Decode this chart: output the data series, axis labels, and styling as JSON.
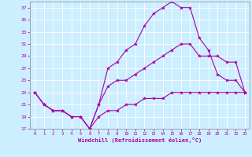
{
  "xlabel": "Windchill (Refroidissement éolien,°C)",
  "bg_color": "#cceeff",
  "line_color": "#aa00aa",
  "xlim": [
    -0.5,
    23.5
  ],
  "ylim": [
    17,
    38
  ],
  "xticks": [
    0,
    1,
    2,
    3,
    4,
    5,
    6,
    7,
    8,
    9,
    10,
    11,
    12,
    13,
    14,
    15,
    16,
    17,
    18,
    19,
    20,
    21,
    22,
    23
  ],
  "yticks": [
    17,
    19,
    21,
    23,
    25,
    27,
    29,
    31,
    33,
    35,
    37
  ],
  "line1_x": [
    0,
    1,
    2,
    3,
    4,
    5,
    6,
    7,
    8,
    9,
    10,
    11,
    12,
    13,
    14,
    15,
    16,
    17,
    18,
    19,
    20,
    21,
    22,
    23
  ],
  "line1_y": [
    23,
    21,
    20,
    20,
    19,
    19,
    17,
    21,
    27,
    28,
    30,
    31,
    34,
    36,
    37,
    38,
    37,
    37,
    32,
    30,
    26,
    25,
    25,
    23
  ],
  "line2_x": [
    0,
    1,
    2,
    3,
    4,
    5,
    6,
    7,
    8,
    9,
    10,
    11,
    12,
    13,
    14,
    15,
    16,
    17,
    18,
    19,
    20,
    21,
    22,
    23
  ],
  "line2_y": [
    23,
    21,
    20,
    20,
    19,
    19,
    17,
    21,
    24,
    25,
    25,
    26,
    27,
    28,
    29,
    30,
    31,
    31,
    29,
    29,
    29,
    28,
    28,
    23
  ],
  "line3_x": [
    0,
    1,
    2,
    3,
    4,
    5,
    6,
    7,
    8,
    9,
    10,
    11,
    12,
    13,
    14,
    15,
    16,
    17,
    18,
    19,
    20,
    21,
    22,
    23
  ],
  "line3_y": [
    23,
    21,
    20,
    20,
    19,
    19,
    17,
    19,
    20,
    20,
    21,
    21,
    22,
    22,
    22,
    23,
    23,
    23,
    23,
    23,
    23,
    23,
    23,
    23
  ]
}
